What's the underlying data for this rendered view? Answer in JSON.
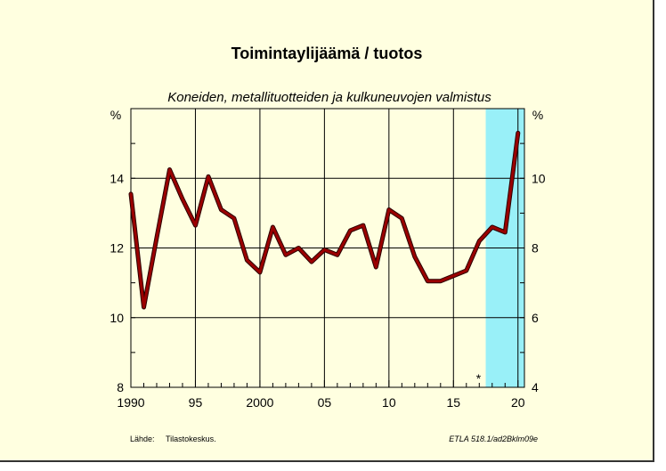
{
  "chart_data": {
    "type": "line",
    "title": "Toimintaylijäämä / tuotos",
    "subtitle": "Koneiden, metallituotteiden ja kulkuneuvojen valmistus",
    "left_unit": "%",
    "right_unit": "%",
    "ylim_left": [
      8,
      16
    ],
    "ylim_right": [
      4,
      12
    ],
    "y_ticks_left": [
      8,
      10,
      12,
      14
    ],
    "y_ticks_right": [
      4,
      6,
      8,
      10
    ],
    "xlim": [
      1990,
      2020.5
    ],
    "x_ticks": [
      1990,
      1995,
      2000,
      2005,
      2010,
      2015,
      2020
    ],
    "x_tick_labels": [
      "1990",
      "95",
      "2000",
      "05",
      "10",
      "15",
      "20"
    ],
    "grid": true,
    "forecast_start": 2017.5,
    "forecast_shade_color": "#99f0f8",
    "forecast_marker": "*",
    "series": [
      {
        "color": "#9b0000",
        "x": [
          1990,
          1991,
          1992,
          1993,
          1994,
          1995,
          1996,
          1997,
          1998,
          1999,
          2000,
          2001,
          2002,
          2003,
          2004,
          2005,
          2006,
          2007,
          2008,
          2009,
          2010,
          2011,
          2012,
          2013,
          2014,
          2015,
          2016,
          2017,
          2018,
          2019,
          2020
        ],
        "values": [
          13.55,
          10.3,
          12.3,
          14.25,
          13.4,
          12.65,
          14.05,
          13.1,
          12.85,
          11.65,
          11.3,
          12.6,
          11.8,
          12.0,
          11.6,
          11.95,
          11.8,
          12.5,
          12.65,
          11.45,
          13.1,
          12.85,
          11.75,
          11.05,
          11.05,
          11.2,
          11.35,
          12.2,
          12.6,
          12.45,
          15.3
        ]
      }
    ]
  },
  "footer": {
    "source_label": "Lähde:",
    "source_value": "Tilastokeskus.",
    "code": "ETLA 518.1/ad2Bklm09e"
  }
}
